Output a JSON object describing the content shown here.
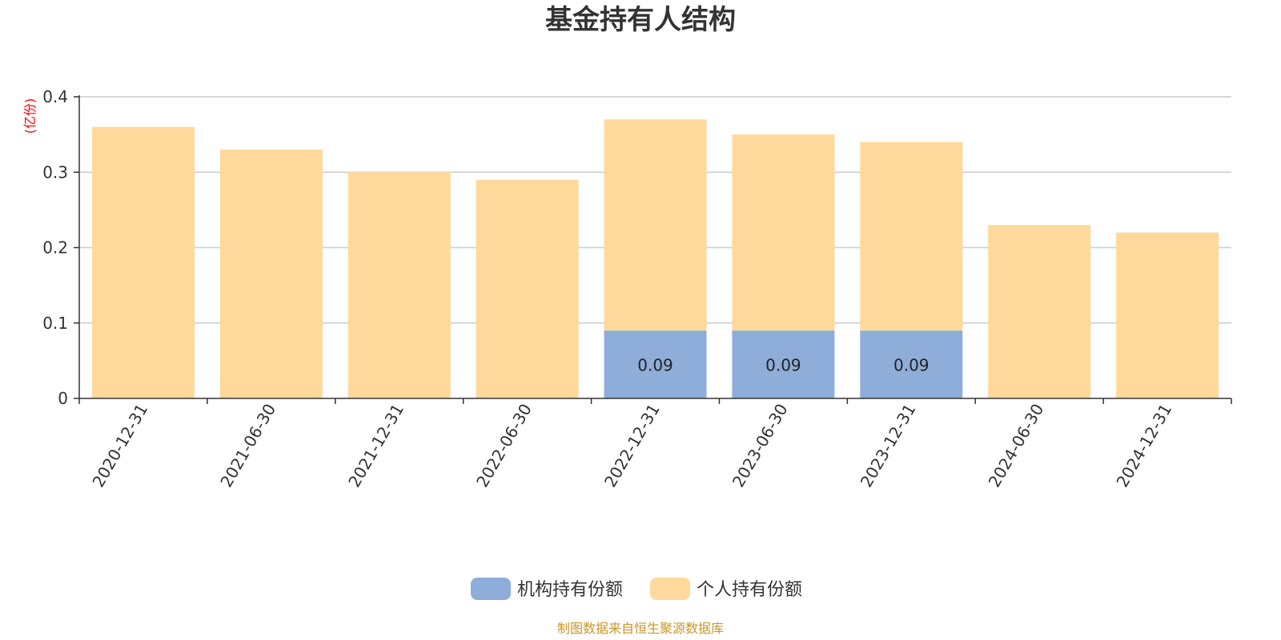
{
  "chart_data": {
    "type": "bar",
    "stacked": true,
    "title": "基金持有人结构",
    "ylabel": "(亿份)",
    "ylim": [
      0,
      0.4
    ],
    "yticks": [
      "0",
      "0.1",
      "0.2",
      "0.3",
      "0.4"
    ],
    "yticks_values": [
      0,
      0.1,
      0.2,
      0.3,
      0.4
    ],
    "grid": true,
    "legend_position": "bottom",
    "categories": [
      "2020-12-31",
      "2021-06-30",
      "2021-12-31",
      "2022-06-30",
      "2022-12-31",
      "2023-06-30",
      "2023-12-31",
      "2024-06-30",
      "2024-12-31"
    ],
    "series": [
      {
        "name": "机构持有份额",
        "color": "#8eadd9",
        "values": [
          0,
          0,
          0,
          0,
          0.09,
          0.09,
          0.09,
          0,
          0
        ],
        "labels": [
          "",
          "",
          "",
          "",
          "0.09",
          "0.09",
          "0.09",
          "",
          ""
        ]
      },
      {
        "name": "个人持有份额",
        "color": "#fed99b",
        "values": [
          0.36,
          0.33,
          0.3,
          0.29,
          0.28,
          0.26,
          0.25,
          0.23,
          0.22
        ],
        "labels": [
          "",
          "",
          "",
          "",
          "",
          "",
          "",
          "",
          ""
        ]
      }
    ],
    "source": "制图数据来自恒生聚源数据库"
  },
  "colors": {
    "ylabel": "#ff0000",
    "source": "#c8962a",
    "grid": "#cccccc",
    "axis": "#333333"
  }
}
